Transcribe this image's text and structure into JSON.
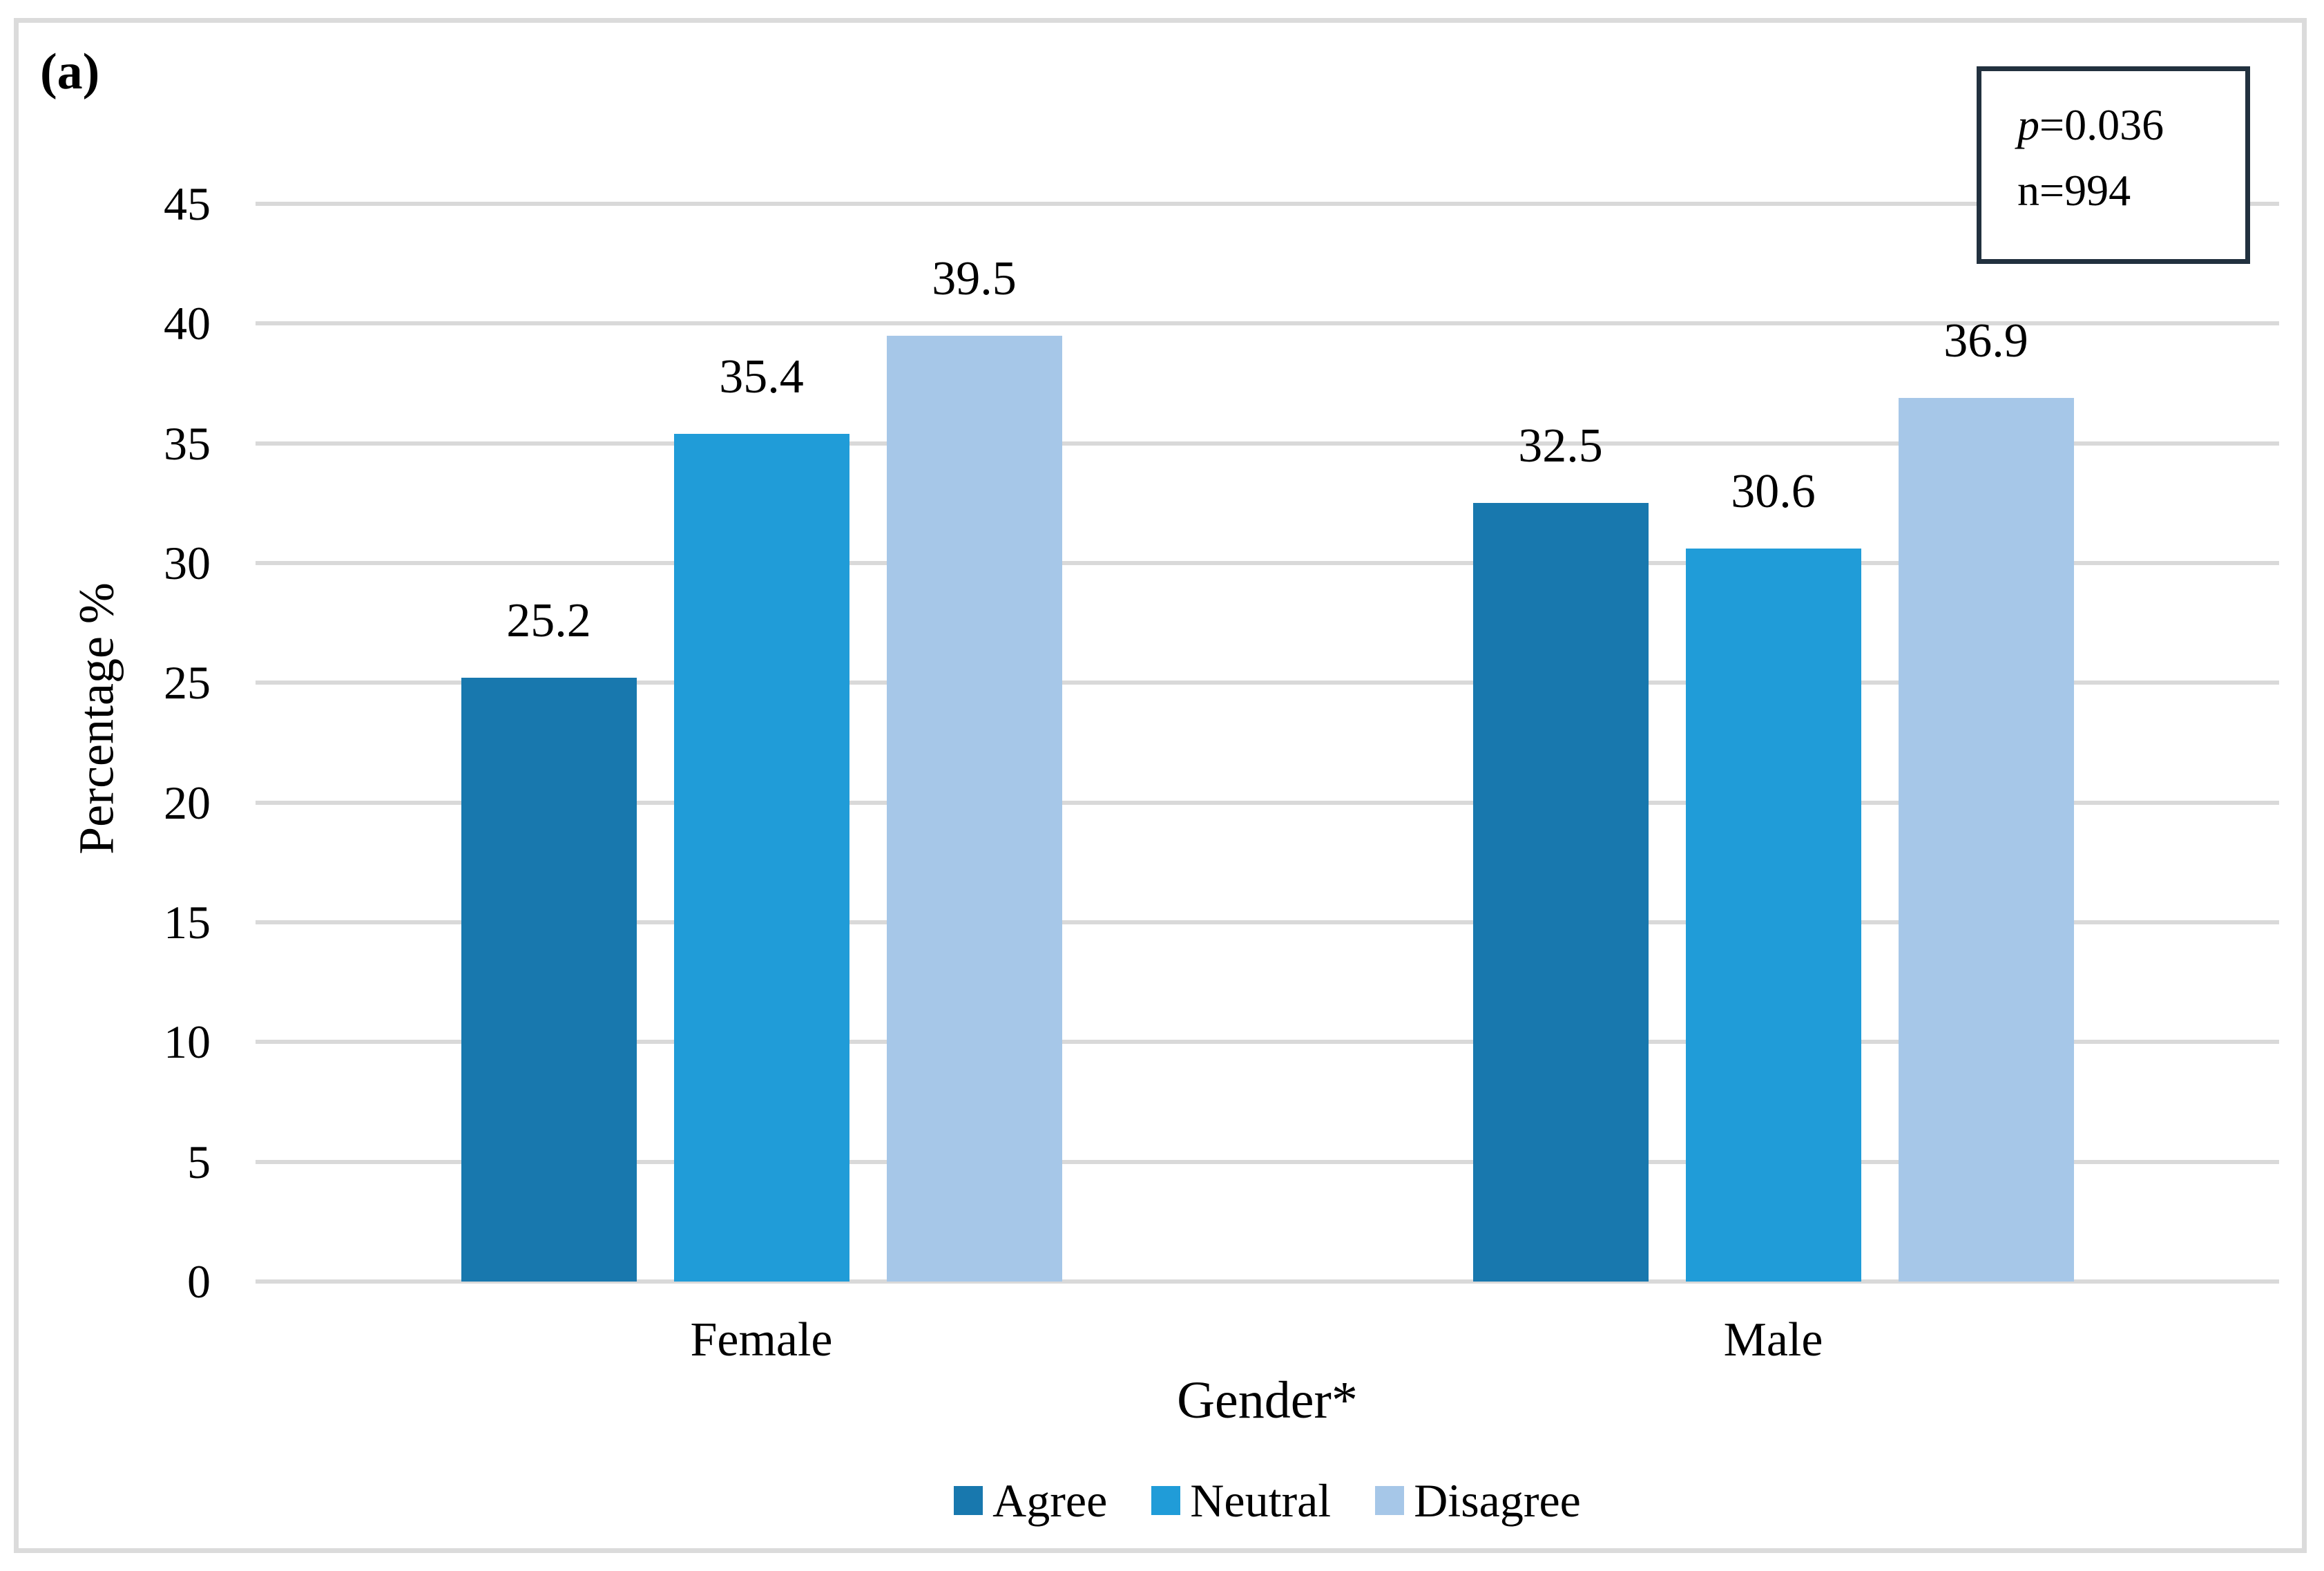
{
  "chart_data": {
    "type": "bar",
    "panel_label": "(a)",
    "title": "",
    "categories": [
      "Female",
      "Male"
    ],
    "series": [
      {
        "name": "Agree",
        "color": "#1878AE",
        "values": [
          25.2,
          32.5
        ]
      },
      {
        "name": "Neutral",
        "color": "#209CD8",
        "values": [
          35.4,
          30.6
        ]
      },
      {
        "name": "Disagree",
        "color": "#A6C7E8",
        "values": [
          39.5,
          36.9
        ]
      }
    ],
    "xlabel": "Gender*",
    "ylabel": "Percentage  %",
    "ylim": [
      0,
      45
    ],
    "ytick_step": 5,
    "grid": true,
    "legend_position": "bottom",
    "annotation": {
      "p_italic": "p",
      "p_rest": "=0.036",
      "n_line": "n=994"
    }
  },
  "colors": {
    "gridline": "#D9D9D9",
    "frame_border": "#DBDBDB",
    "stats_box_border": "#22313F",
    "text": "#000000",
    "background": "#FFFFFF"
  }
}
